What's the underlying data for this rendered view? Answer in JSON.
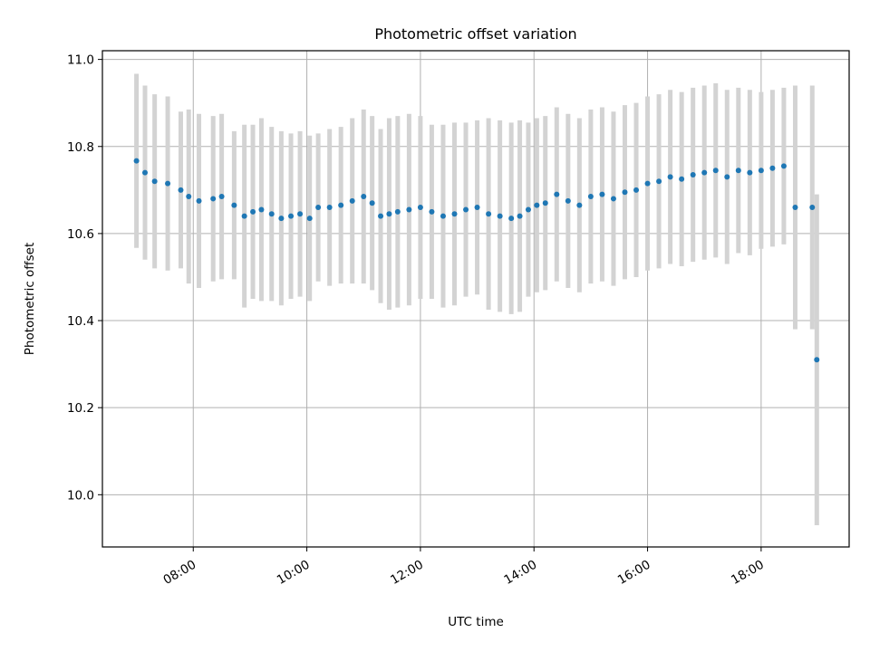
{
  "chart_data": {
    "type": "scatter",
    "title": "Photometric offset variation",
    "xlabel": "UTC time",
    "ylabel": "Photometric offset",
    "x_unit": "hours (UTC)",
    "xlim": [
      6.4,
      19.55
    ],
    "ylim": [
      9.88,
      11.02
    ],
    "grid": true,
    "x_ticks": [
      {
        "value": 8,
        "label": "08:00"
      },
      {
        "value": 10,
        "label": "10:00"
      },
      {
        "value": 12,
        "label": "12:00"
      },
      {
        "value": 14,
        "label": "14:00"
      },
      {
        "value": 16,
        "label": "16:00"
      },
      {
        "value": 18,
        "label": "18:00"
      }
    ],
    "y_ticks": [
      {
        "value": 10.0,
        "label": "10.0"
      },
      {
        "value": 10.2,
        "label": "10.2"
      },
      {
        "value": 10.4,
        "label": "10.4"
      },
      {
        "value": 10.6,
        "label": "10.6"
      },
      {
        "value": 10.8,
        "label": "10.8"
      },
      {
        "value": 11.0,
        "label": "11.0"
      }
    ],
    "colors": {
      "points": "#1f77b4",
      "errorbars": "#d3d3d3",
      "grid": "#b0b0b0"
    },
    "series": [
      {
        "x": [
          7.0,
          7.15,
          7.32,
          7.55,
          7.78,
          7.92,
          8.1,
          8.35,
          8.5,
          8.72,
          8.9,
          9.05,
          9.2,
          9.38,
          9.55,
          9.72,
          9.88,
          10.05,
          10.2,
          10.4,
          10.6,
          10.8,
          11.0,
          11.15,
          11.3,
          11.45,
          11.6,
          11.8,
          12.0,
          12.2,
          12.4,
          12.6,
          12.8,
          13.0,
          13.2,
          13.4,
          13.6,
          13.75,
          13.9,
          14.05,
          14.2,
          14.4,
          14.6,
          14.8,
          15.0,
          15.2,
          15.4,
          15.6,
          15.8,
          16.0,
          16.2,
          16.4,
          16.6,
          16.8,
          17.0,
          17.2,
          17.4,
          17.6,
          17.8,
          18.0,
          18.2,
          18.4,
          18.6,
          18.9,
          18.98
        ],
        "y": [
          10.767,
          10.74,
          10.72,
          10.715,
          10.7,
          10.685,
          10.675,
          10.68,
          10.685,
          10.665,
          10.64,
          10.65,
          10.655,
          10.645,
          10.635,
          10.64,
          10.645,
          10.635,
          10.66,
          10.66,
          10.665,
          10.675,
          10.685,
          10.67,
          10.64,
          10.645,
          10.65,
          10.655,
          10.66,
          10.65,
          10.64,
          10.645,
          10.655,
          10.66,
          10.645,
          10.64,
          10.635,
          10.64,
          10.655,
          10.665,
          10.67,
          10.69,
          10.675,
          10.665,
          10.685,
          10.69,
          10.68,
          10.695,
          10.7,
          10.715,
          10.72,
          10.73,
          10.725,
          10.735,
          10.74,
          10.745,
          10.73,
          10.745,
          10.74,
          10.745,
          10.75,
          10.755,
          10.66,
          10.66,
          10.31
        ],
        "yerr": [
          0.2,
          0.2,
          0.2,
          0.2,
          0.18,
          0.2,
          0.2,
          0.19,
          0.19,
          0.17,
          0.21,
          0.2,
          0.21,
          0.2,
          0.2,
          0.19,
          0.19,
          0.19,
          0.17,
          0.18,
          0.18,
          0.19,
          0.2,
          0.2,
          0.2,
          0.22,
          0.22,
          0.22,
          0.21,
          0.2,
          0.21,
          0.21,
          0.2,
          0.2,
          0.22,
          0.22,
          0.22,
          0.22,
          0.2,
          0.2,
          0.2,
          0.2,
          0.2,
          0.2,
          0.2,
          0.2,
          0.2,
          0.2,
          0.2,
          0.2,
          0.2,
          0.2,
          0.2,
          0.2,
          0.2,
          0.2,
          0.2,
          0.19,
          0.19,
          0.18,
          0.18,
          0.18,
          0.28,
          0.28,
          0.38
        ]
      }
    ]
  }
}
